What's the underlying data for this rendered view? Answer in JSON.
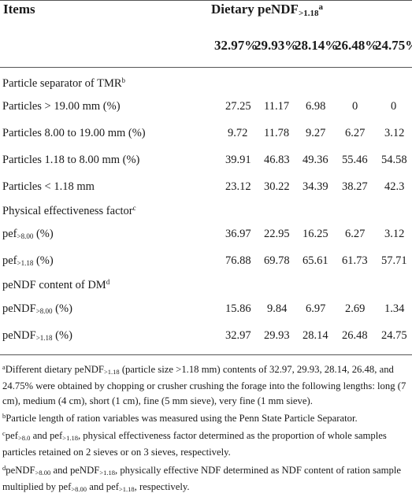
{
  "header": {
    "items_label": "Items",
    "dietary_label": "Dietary peNDF",
    "dietary_sub": ">1.18",
    "dietary_sup": "a"
  },
  "levels": [
    "32.97%",
    "29.93%",
    "28.14%",
    "26.48%",
    "24.75%"
  ],
  "sections": {
    "particle_separator": {
      "label": "Particle separator of TMR",
      "sup": "b"
    },
    "physical_effectiveness": {
      "label": "Physical effectiveness factor",
      "sup": "c"
    },
    "pendf_content": {
      "label": "peNDF content of DM",
      "sup": "d"
    }
  },
  "rows": {
    "p19": {
      "label": "Particles > 19.00 mm (%)",
      "values": [
        "27.25",
        "11.17",
        "6.98",
        "0",
        "0"
      ]
    },
    "p8_19": {
      "label": "Particles 8.00 to 19.00 mm (%)",
      "values": [
        "9.72",
        "11.78",
        "9.27",
        "6.27",
        "3.12"
      ]
    },
    "p118_8": {
      "label": "Particles 1.18 to 8.00 mm (%)",
      "values": [
        "39.91",
        "46.83",
        "49.36",
        "55.46",
        "54.58"
      ]
    },
    "plt118": {
      "label": "Particles < 1.18 mm",
      "values": [
        "23.12",
        "30.22",
        "34.39",
        "38.27",
        "42.3"
      ]
    },
    "pef800": {
      "label_main": "pef",
      "label_sub": ">8.00",
      "label_tail": " (%)",
      "values": [
        "36.97",
        "22.95",
        "16.25",
        "6.27",
        "3.12"
      ]
    },
    "pef118": {
      "label_main": "pef",
      "label_sub": ">1.18",
      "label_tail": " (%)",
      "values": [
        "76.88",
        "69.78",
        "65.61",
        "61.73",
        "57.71"
      ]
    },
    "pendf800": {
      "label_main": "peNDF",
      "label_sub": ">8.00",
      "label_tail": " (%)",
      "values": [
        "15.86",
        "9.84",
        "6.97",
        "2.69",
        "1.34"
      ]
    },
    "pendf118": {
      "label_main": "peNDF",
      "label_sub": ">1.18",
      "label_tail": " (%)",
      "values": [
        "32.97",
        "29.93",
        "28.14",
        "26.48",
        "24.75"
      ]
    }
  },
  "footnotes": {
    "a": {
      "mark": "a",
      "t1": "Different dietary peNDF",
      "sub1": ">1.18",
      "t2": " (particle size >1.18 mm) contents of 32.97, 29.93, 28.14, 26.48, and 24.75% were obtained by chopping or crusher crushing the forage into the following lengths: long (7 cm), medium (4 cm), short (1 cm), fine (5 mm sieve), very fine (1 mm sieve)."
    },
    "b": {
      "mark": "b",
      "text": "Particle length of ration variables was measured using the Penn State Particle Separator."
    },
    "c": {
      "mark": "c",
      "t1": "pef",
      "sub1": ">8.0",
      "t2": " and pef",
      "sub2": ">1.18",
      "t3": ", physical effectiveness factor determined as the proportion of whole samples particles retained on 2 sieves or on 3 sieves, respectively."
    },
    "d": {
      "mark": "d",
      "t1": "peNDF",
      "sub1": ">8.00",
      "t2": " and peNDF",
      "sub2": ">1.18",
      "t3": ", physically effective NDF determined as NDF content of ration sample multiplied by pef",
      "sub3": ">8.00",
      "t4": " and pef",
      "sub4": ">1.18",
      "t5": ", respectively."
    }
  }
}
